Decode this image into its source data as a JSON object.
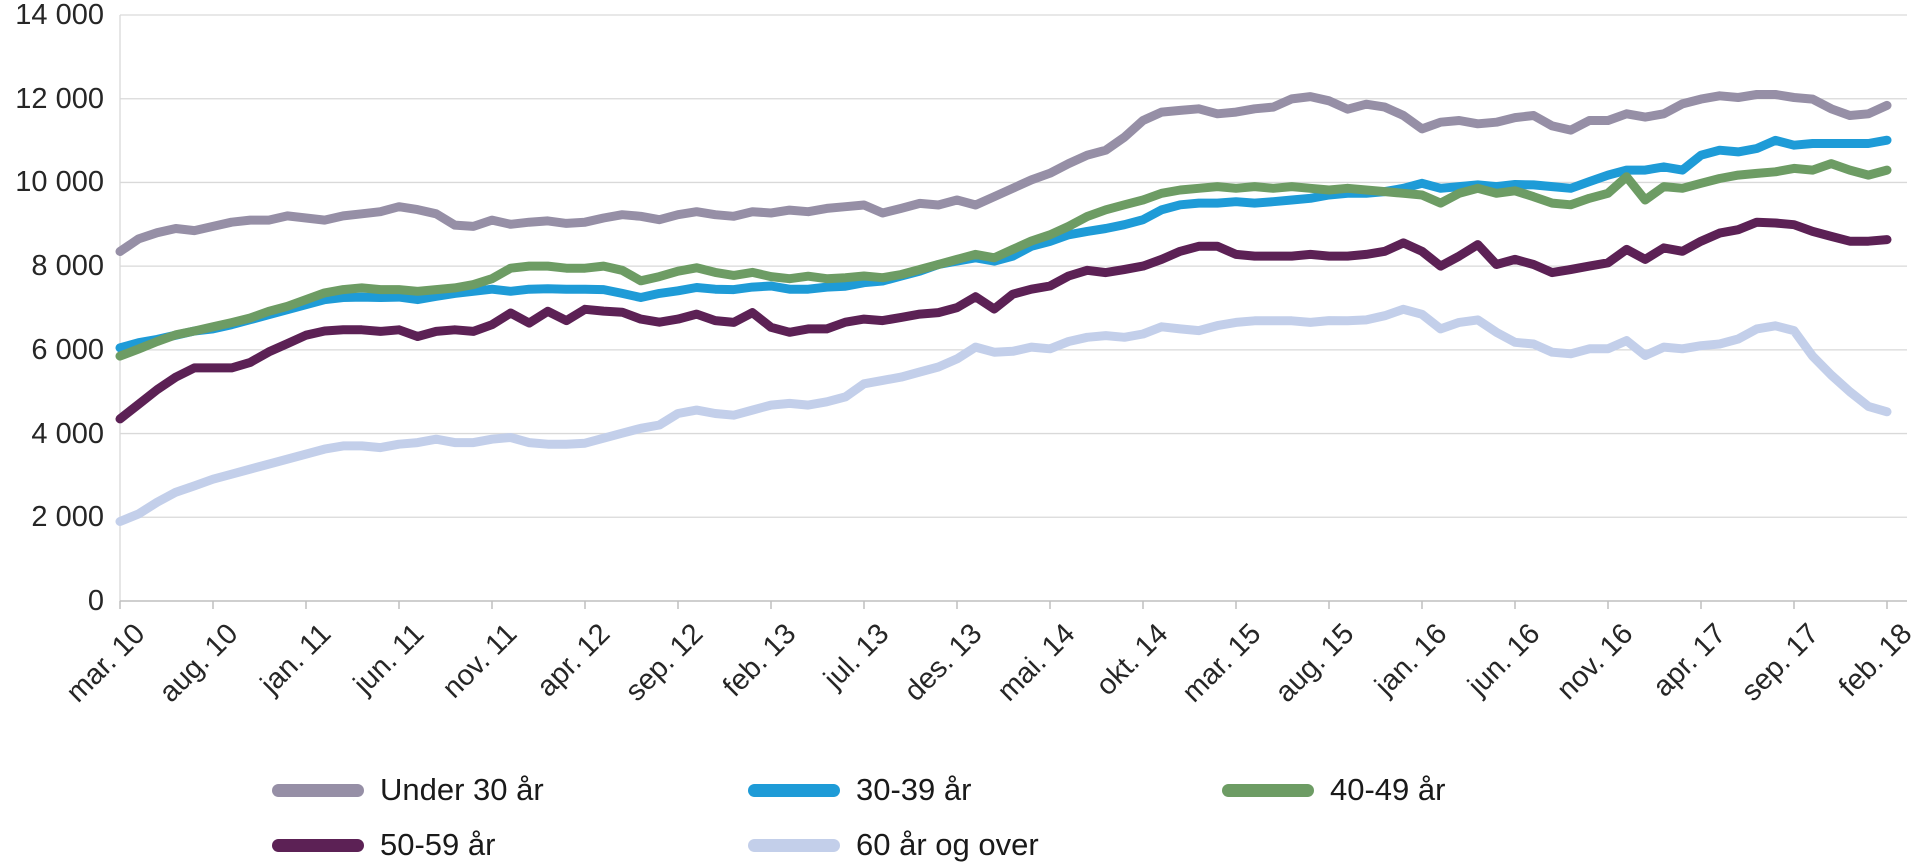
{
  "chart_data": {
    "type": "line",
    "title": "",
    "x_frequency": "monthly",
    "x_start": "mar. 10",
    "x_end": "feb. 18",
    "x_tick_labels": [
      "mar. 10",
      "aug. 10",
      "jan. 11",
      "jun. 11",
      "nov. 11",
      "apr. 12",
      "sep. 12",
      "feb. 13",
      "jul. 13",
      "des. 13",
      "mai. 14",
      "okt. 14",
      "mar. 15",
      "aug. 15",
      "jan. 16",
      "jun. 16",
      "nov. 16",
      "apr. 17",
      "sep. 17",
      "feb. 18"
    ],
    "x_tick_every_n_points": 5,
    "ylim": [
      0,
      14000
    ],
    "y_tick_step": 2000,
    "y_tick_labels_top_to_bottom": [
      "14 000",
      "12 000",
      "10 000",
      "8 000",
      "6 000",
      "4 000",
      "2 000",
      "0"
    ],
    "grid": "horizontal",
    "legend_position": "bottom",
    "colors": {
      "grid": "#d9d9d9",
      "axis": "#bfbfbf",
      "text": "#262626"
    },
    "series": [
      {
        "name": "Under 30 år",
        "color": "#968FA6",
        "values": [
          8350,
          8650,
          8800,
          8900,
          8850,
          8950,
          9050,
          9100,
          9100,
          9200,
          9150,
          9100,
          9200,
          9250,
          9300,
          9420,
          9350,
          9250,
          8980,
          8950,
          9100,
          9000,
          9050,
          9080,
          9020,
          9050,
          9150,
          9230,
          9190,
          9110,
          9230,
          9300,
          9230,
          9190,
          9300,
          9270,
          9340,
          9300,
          9380,
          9420,
          9460,
          9270,
          9380,
          9500,
          9460,
          9580,
          9460,
          9660,
          9860,
          10060,
          10220,
          10450,
          10650,
          10770,
          11080,
          11480,
          11680,
          11720,
          11760,
          11640,
          11680,
          11760,
          11800,
          11995,
          12050,
          11950,
          11750,
          11870,
          11800,
          11600,
          11280,
          11440,
          11480,
          11400,
          11440,
          11550,
          11600,
          11350,
          11250,
          11480,
          11480,
          11640,
          11560,
          11640,
          11875,
          11990,
          12070,
          12030,
          12100,
          12100,
          12030,
          11990,
          11760,
          11600,
          11640,
          11840
        ]
      },
      {
        "name": "30-39 år",
        "color": "#1E9BD7",
        "values": [
          6050,
          6170,
          6250,
          6350,
          6450,
          6500,
          6600,
          6720,
          6840,
          6960,
          7080,
          7200,
          7250,
          7260,
          7250,
          7260,
          7200,
          7280,
          7350,
          7400,
          7450,
          7400,
          7450,
          7460,
          7450,
          7450,
          7440,
          7350,
          7250,
          7350,
          7410,
          7490,
          7450,
          7440,
          7500,
          7525,
          7450,
          7450,
          7500,
          7520,
          7605,
          7645,
          7765,
          7880,
          8040,
          8120,
          8200,
          8120,
          8240,
          8475,
          8590,
          8750,
          8830,
          8900,
          8990,
          9110,
          9345,
          9465,
          9505,
          9505,
          9540,
          9505,
          9540,
          9580,
          9620,
          9700,
          9740,
          9740,
          9780,
          9860,
          9980,
          9860,
          9900,
          9940,
          9900,
          9950,
          9940,
          9900,
          9860,
          10020,
          10175,
          10295,
          10295,
          10370,
          10295,
          10650,
          10770,
          10730,
          10810,
          11005,
          10890,
          10930,
          10930,
          10930,
          10930,
          11010
        ]
      },
      {
        "name": "40-49 år",
        "color": "#6D9C64",
        "values": [
          5850,
          6020,
          6200,
          6360,
          6450,
          6550,
          6650,
          6760,
          6920,
          7040,
          7200,
          7360,
          7440,
          7480,
          7440,
          7440,
          7400,
          7440,
          7480,
          7560,
          7700,
          7950,
          8000,
          8000,
          7950,
          7950,
          8000,
          7900,
          7650,
          7750,
          7880,
          7960,
          7850,
          7780,
          7850,
          7750,
          7700,
          7760,
          7700,
          7725,
          7765,
          7725,
          7800,
          7920,
          8040,
          8160,
          8280,
          8200,
          8400,
          8600,
          8750,
          8950,
          9185,
          9345,
          9465,
          9580,
          9740,
          9820,
          9860,
          9900,
          9860,
          9900,
          9860,
          9900,
          9860,
          9820,
          9860,
          9820,
          9780,
          9740,
          9700,
          9505,
          9740,
          9860,
          9740,
          9800,
          9660,
          9505,
          9465,
          9620,
          9740,
          10135,
          9580,
          9900,
          9860,
          9980,
          10095,
          10175,
          10215,
          10255,
          10335,
          10295,
          10450,
          10295,
          10175,
          10295
        ]
      },
      {
        "name": "50-59 år",
        "color": "#5C2155",
        "values": [
          4350,
          4700,
          5050,
          5350,
          5570,
          5570,
          5570,
          5700,
          5950,
          6150,
          6350,
          6450,
          6480,
          6480,
          6440,
          6480,
          6320,
          6440,
          6480,
          6440,
          6600,
          6880,
          6640,
          6920,
          6700,
          6970,
          6925,
          6900,
          6735,
          6660,
          6735,
          6855,
          6700,
          6655,
          6890,
          6540,
          6420,
          6500,
          6500,
          6660,
          6735,
          6700,
          6775,
          6855,
          6890,
          7010,
          7270,
          6975,
          7330,
          7450,
          7525,
          7765,
          7900,
          7845,
          7920,
          8000,
          8160,
          8355,
          8475,
          8475,
          8280,
          8240,
          8240,
          8240,
          8280,
          8240,
          8240,
          8280,
          8355,
          8555,
          8355,
          8000,
          8240,
          8515,
          8040,
          8160,
          8040,
          7845,
          7920,
          8000,
          8080,
          8400,
          8160,
          8435,
          8355,
          8595,
          8790,
          8870,
          9050,
          9030,
          8990,
          8830,
          8710,
          8595,
          8595,
          8635
        ]
      },
      {
        "name": "60 år og over",
        "color": "#C3CFEA",
        "values": [
          1900,
          2080,
          2360,
          2600,
          2750,
          2910,
          3030,
          3150,
          3270,
          3390,
          3510,
          3630,
          3705,
          3705,
          3665,
          3745,
          3785,
          3865,
          3785,
          3785,
          3865,
          3905,
          3785,
          3745,
          3745,
          3770,
          3890,
          4010,
          4125,
          4205,
          4480,
          4560,
          4480,
          4440,
          4560,
          4680,
          4720,
          4680,
          4760,
          4875,
          5190,
          5270,
          5350,
          5470,
          5590,
          5785,
          6065,
          5945,
          5965,
          6065,
          6025,
          6200,
          6300,
          6340,
          6300,
          6380,
          6550,
          6500,
          6460,
          6580,
          6655,
          6695,
          6695,
          6695,
          6655,
          6700,
          6695,
          6715,
          6815,
          6970,
          6850,
          6500,
          6655,
          6715,
          6420,
          6180,
          6140,
          5945,
          5905,
          6025,
          6025,
          6220,
          5865,
          6065,
          6025,
          6100,
          6140,
          6260,
          6500,
          6575,
          6460,
          5850,
          5400,
          5000,
          4650,
          4520
        ]
      }
    ],
    "legend_layout_rows": [
      [
        0,
        1,
        2
      ],
      [
        3,
        4
      ]
    ]
  }
}
